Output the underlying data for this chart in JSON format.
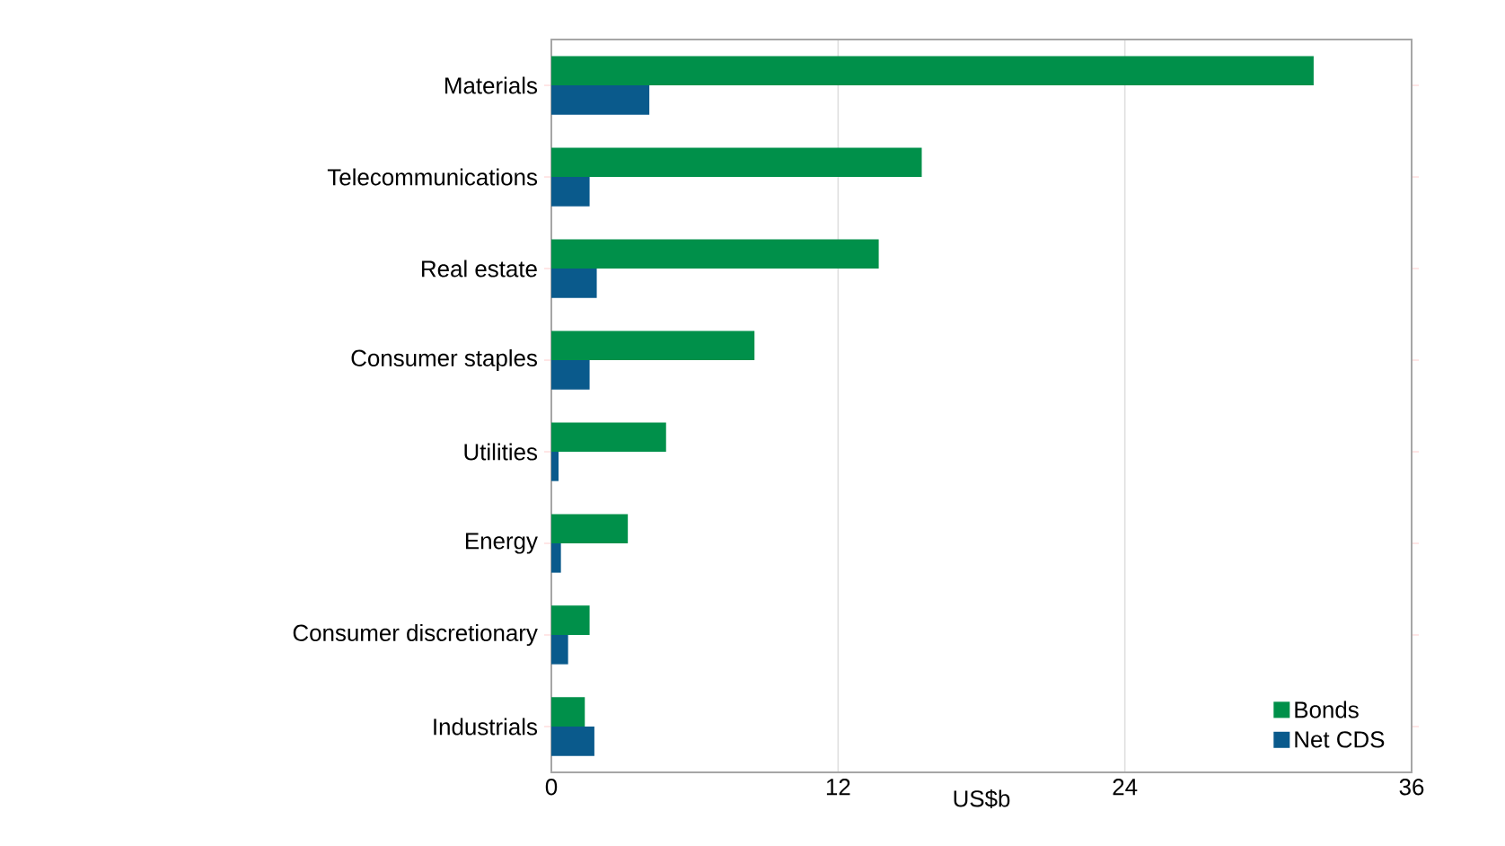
{
  "chart_data": {
    "type": "bar",
    "orientation": "horizontal",
    "xlabel": "US$b",
    "categories": [
      "Materials",
      "Telecommunications",
      "Real estate",
      "Consumer staples",
      "Utilities",
      "Energy",
      "Consumer discretionary",
      "Industrials"
    ],
    "series": [
      {
        "name": "Bonds",
        "color": "#00904a",
        "values": [
          31.9,
          15.5,
          13.7,
          8.5,
          4.8,
          3.2,
          1.6,
          1.4
        ]
      },
      {
        "name": "Net CDS",
        "color": "#0a5a8c",
        "values": [
          4.1,
          1.6,
          1.9,
          1.6,
          0.3,
          0.4,
          0.7,
          1.8
        ]
      }
    ],
    "xlim": [
      0,
      36
    ],
    "xticks": [
      0,
      12,
      24,
      36
    ],
    "grid": "x",
    "legend": "bottom right"
  }
}
